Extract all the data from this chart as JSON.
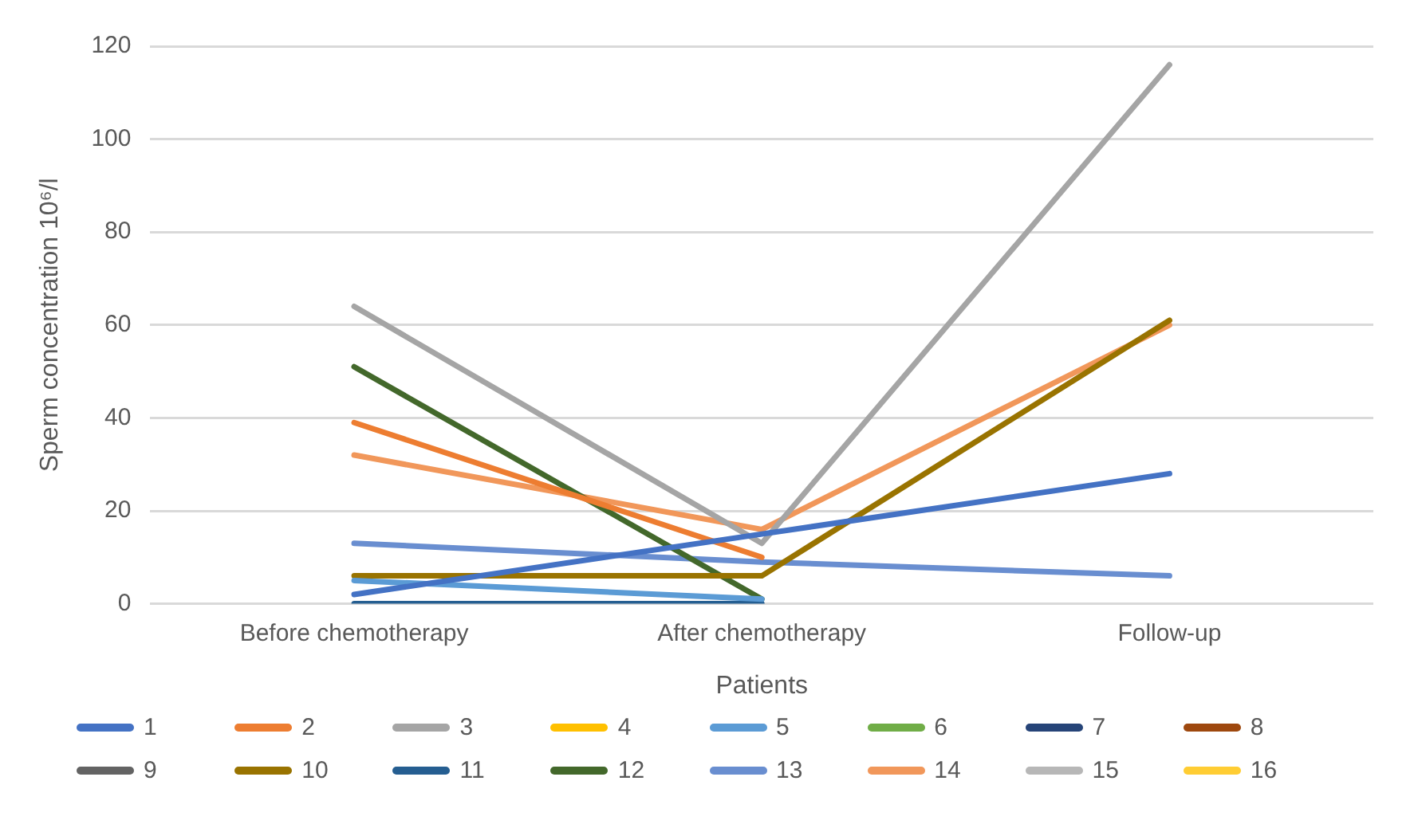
{
  "chart_data": {
    "type": "line",
    "ylabel": "Sperm concentration 10⁶/l",
    "xlabel": "Patients",
    "categories": [
      "Before chemotherapy",
      "After chemotherapy",
      "Follow-up"
    ],
    "ylim": [
      0,
      120
    ],
    "yticks": [
      0,
      20,
      40,
      60,
      80,
      100,
      120
    ],
    "grid": "y",
    "legend": "bottom",
    "marker": "none",
    "line_style": "solid",
    "series": [
      {
        "name": "1",
        "color": "#4472c4",
        "values": [
          2,
          15,
          28
        ]
      },
      {
        "name": "2",
        "color": "#ed7d31",
        "values": [
          39,
          10,
          null
        ]
      },
      {
        "name": "3",
        "color": "#a5a5a5",
        "values": [
          64,
          13,
          116
        ]
      },
      {
        "name": "4",
        "color": "#ffc000",
        "values": [
          null,
          null,
          null
        ]
      },
      {
        "name": "5",
        "color": "#5b9bd5",
        "values": [
          5,
          1,
          null
        ]
      },
      {
        "name": "6",
        "color": "#70ad47",
        "values": [
          null,
          null,
          null
        ]
      },
      {
        "name": "7",
        "color": "#264478",
        "values": [
          null,
          null,
          null
        ]
      },
      {
        "name": "8",
        "color": "#9e480e",
        "values": [
          null,
          null,
          null
        ]
      },
      {
        "name": "9",
        "color": "#636363",
        "values": [
          null,
          null,
          null
        ]
      },
      {
        "name": "10",
        "color": "#997300",
        "values": [
          6,
          6,
          61
        ]
      },
      {
        "name": "11",
        "color": "#255e91",
        "values": [
          0,
          0,
          null
        ]
      },
      {
        "name": "12",
        "color": "#43682b",
        "values": [
          51,
          1,
          null
        ]
      },
      {
        "name": "13",
        "color": "#698ed0",
        "values": [
          13,
          9,
          6
        ]
      },
      {
        "name": "14",
        "color": "#f1975a",
        "values": [
          32,
          16,
          60
        ]
      },
      {
        "name": "15",
        "color": "#b7b7b7",
        "values": [
          null,
          null,
          null
        ]
      },
      {
        "name": "16",
        "color": "#ffcd33",
        "values": [
          null,
          null,
          null
        ]
      }
    ]
  }
}
